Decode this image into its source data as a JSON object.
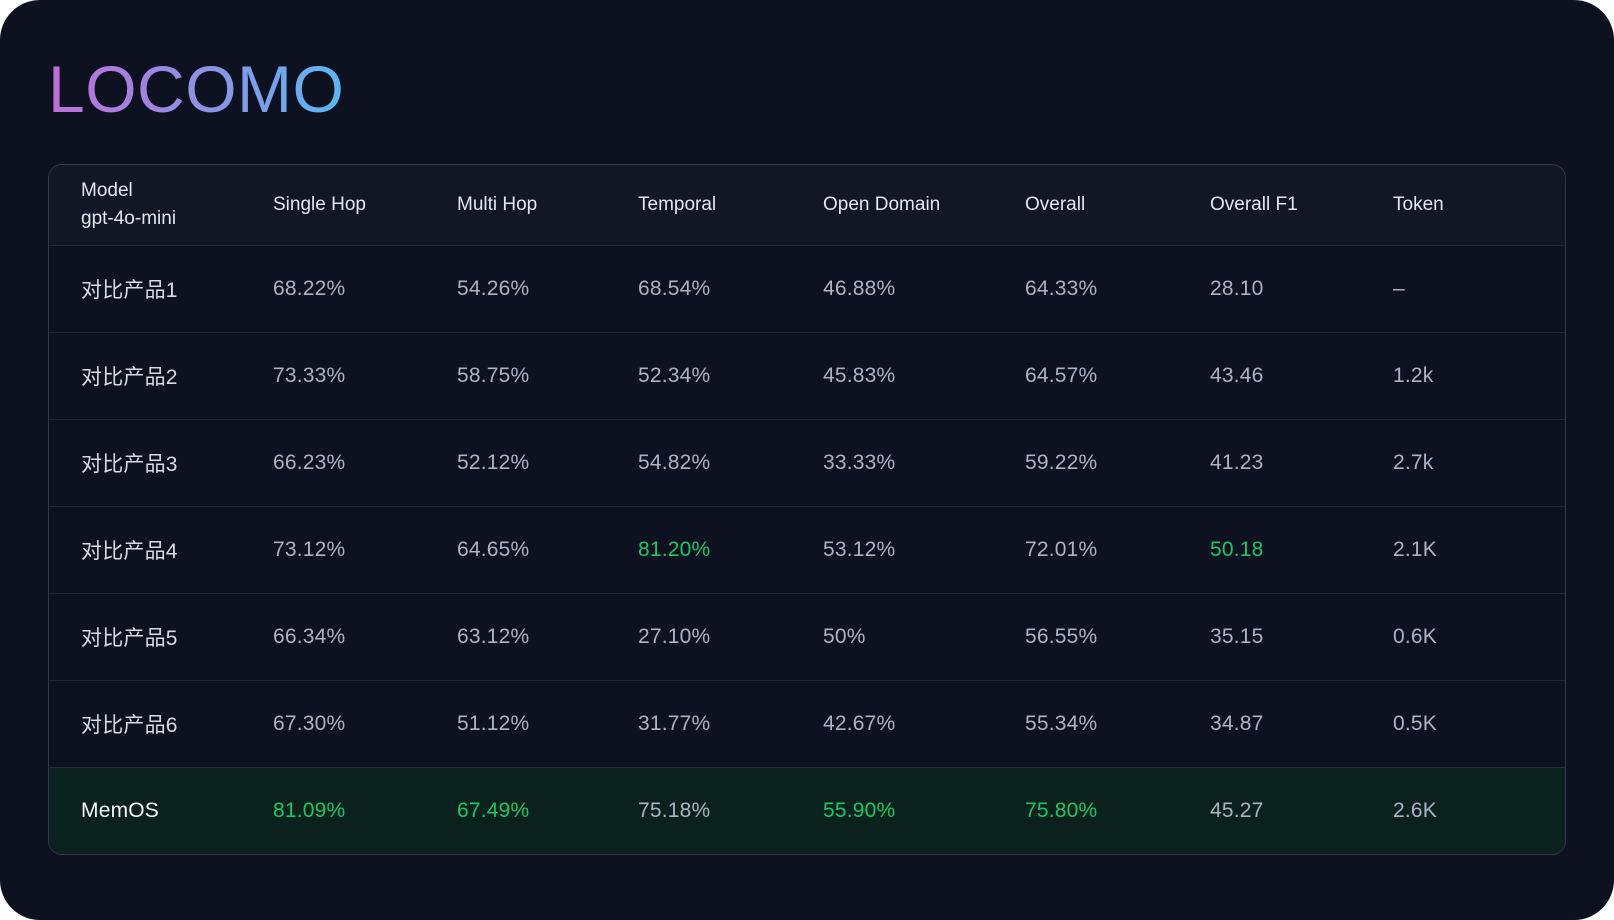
{
  "title": "LOCOMO",
  "colors": {
    "card_background": "#0d1120",
    "title_gradient_start": "#bf6ed6",
    "title_gradient_end": "#57b9f3",
    "value_text": "#abb3c5",
    "model_text": "#d7dbe4",
    "highlight_green": "#17c964",
    "highlight_row_background": "#0b211e",
    "table_border": "#3a4560"
  },
  "table": {
    "header": {
      "model_line1": "Model",
      "model_line2": "gpt-4o-mini",
      "metrics": [
        "Single Hop",
        "Multi Hop",
        "Temporal",
        "Open Domain",
        "Overall",
        "Overall F1",
        "Token"
      ]
    },
    "rows": [
      {
        "model": "对比产品1",
        "highlight_row": false,
        "cells": [
          "68.22%",
          "54.26%",
          "68.54%",
          "46.88%",
          "64.33%",
          "28.10",
          "–"
        ],
        "highlight_cells": []
      },
      {
        "model": "对比产品2",
        "highlight_row": false,
        "cells": [
          "73.33%",
          "58.75%",
          "52.34%",
          "45.83%",
          "64.57%",
          "43.46",
          "1.2k"
        ],
        "highlight_cells": []
      },
      {
        "model": "对比产品3",
        "highlight_row": false,
        "cells": [
          "66.23%",
          "52.12%",
          "54.82%",
          "33.33%",
          "59.22%",
          "41.23",
          "2.7k"
        ],
        "highlight_cells": []
      },
      {
        "model": "对比产品4",
        "highlight_row": false,
        "cells": [
          "73.12%",
          "64.65%",
          "81.20%",
          "53.12%",
          "72.01%",
          "50.18",
          "2.1K"
        ],
        "highlight_cells": [
          2,
          5
        ]
      },
      {
        "model": "对比产品5",
        "highlight_row": false,
        "cells": [
          "66.34%",
          "63.12%",
          "27.10%",
          "50%",
          "56.55%",
          "35.15",
          "0.6K"
        ],
        "highlight_cells": []
      },
      {
        "model": "对比产品6",
        "highlight_row": false,
        "cells": [
          "67.30%",
          "51.12%",
          "31.77%",
          "42.67%",
          "55.34%",
          "34.87",
          "0.5K"
        ],
        "highlight_cells": []
      },
      {
        "model": "MemOS",
        "highlight_row": true,
        "cells": [
          "81.09%",
          "67.49%",
          "75.18%",
          "55.90%",
          "75.80%",
          "45.27",
          "2.6K"
        ],
        "highlight_cells": [
          0,
          1,
          3,
          4
        ]
      }
    ]
  }
}
